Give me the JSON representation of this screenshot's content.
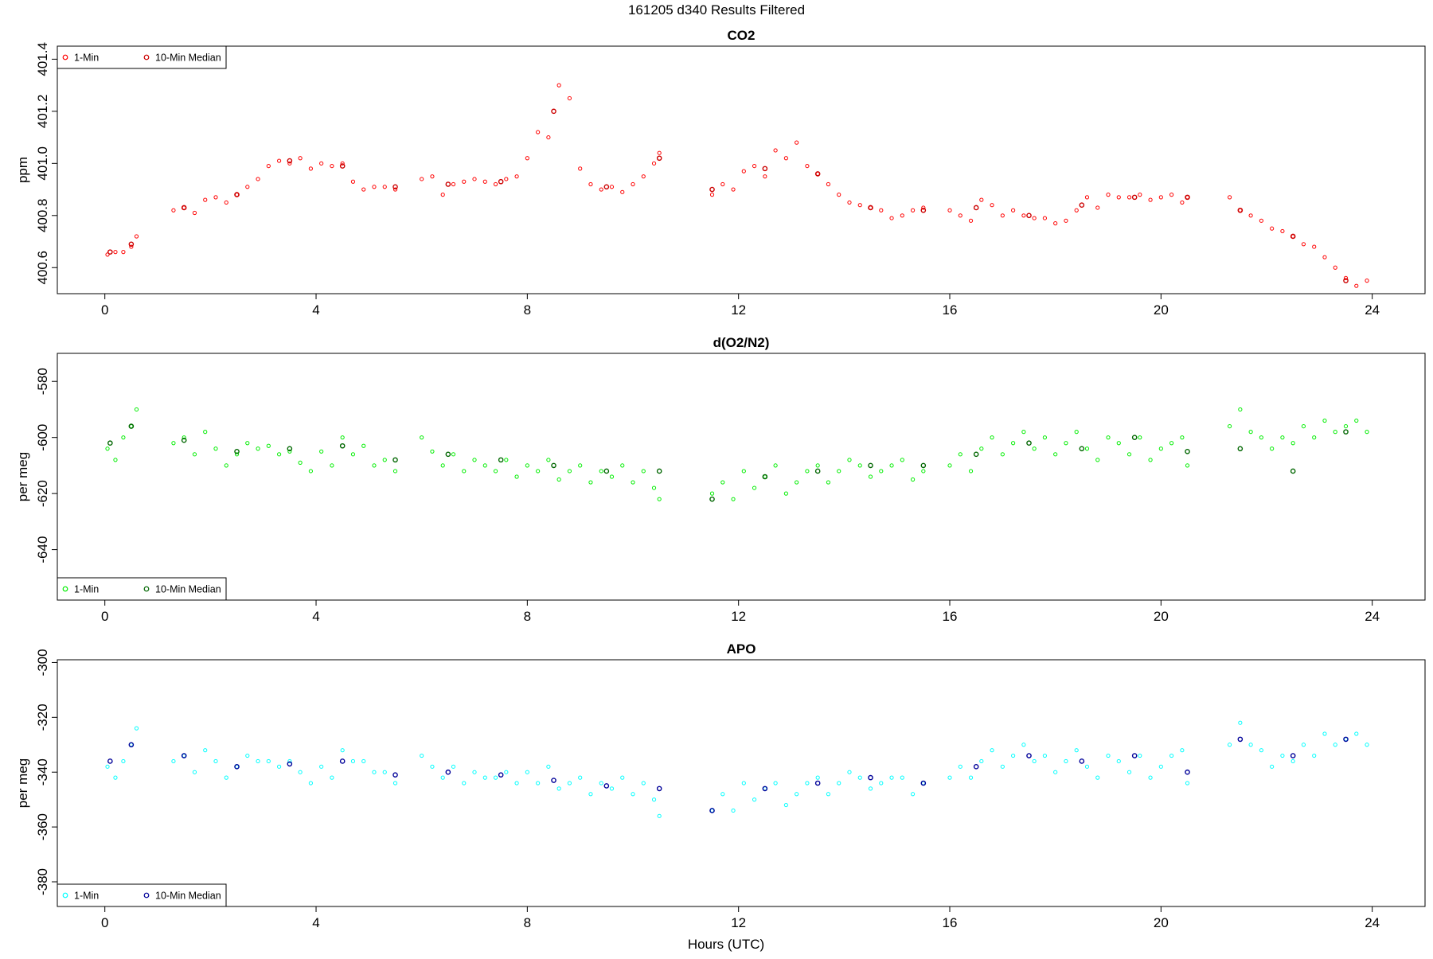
{
  "page_title": "161205   d340   Results Filtered",
  "xlabel": "Hours (UTC)",
  "chart_data": [
    {
      "type": "scatter",
      "title": "CO2",
      "ylabel": "ppm",
      "xlim": [
        -0.9,
        25.0
      ],
      "ylim": [
        400.5,
        401.45
      ],
      "xticks": [
        0,
        4,
        8,
        12,
        16,
        20,
        24
      ],
      "yticks": [
        400.6,
        400.8,
        401.0,
        401.2,
        401.4
      ],
      "ytick_labels": [
        "400.6",
        "400.8",
        "401.0",
        "401.2",
        "401.4"
      ],
      "legend": {
        "position": "top-left",
        "entries": [
          "1-Min",
          "10-Min Median"
        ]
      },
      "series": [
        {
          "name": "1-Min",
          "color": "#ff0000",
          "x": [
            0.05,
            0.2,
            0.35,
            0.5,
            0.6,
            1.3,
            1.5,
            1.7,
            1.9,
            2.1,
            2.3,
            2.5,
            2.7,
            2.9,
            3.1,
            3.3,
            3.5,
            3.7,
            3.9,
            4.1,
            4.3,
            4.5,
            4.7,
            4.9,
            5.1,
            5.3,
            5.5,
            6.0,
            6.2,
            6.4,
            6.6,
            6.8,
            7.0,
            7.2,
            7.4,
            7.6,
            7.8,
            8.0,
            8.2,
            8.4,
            8.6,
            8.8,
            9.0,
            9.2,
            9.4,
            9.6,
            9.8,
            10.0,
            10.2,
            10.4,
            10.5,
            11.5,
            11.7,
            11.9,
            12.1,
            12.3,
            12.5,
            12.7,
            12.9,
            13.1,
            13.3,
            13.5,
            13.7,
            13.9,
            14.1,
            14.3,
            14.5,
            14.7,
            14.9,
            15.1,
            15.3,
            15.5,
            16.0,
            16.2,
            16.4,
            16.6,
            16.8,
            17.0,
            17.2,
            17.4,
            17.6,
            17.8,
            18.0,
            18.2,
            18.4,
            18.6,
            18.8,
            19.0,
            19.2,
            19.4,
            19.6,
            19.8,
            20.0,
            20.2,
            20.4,
            20.5,
            21.3,
            21.5,
            21.7,
            21.9,
            22.1,
            22.3,
            22.5,
            22.7,
            22.9,
            23.1,
            23.3,
            23.5,
            23.7,
            23.9
          ],
          "values": [
            400.65,
            400.66,
            400.66,
            400.68,
            400.72,
            400.82,
            400.83,
            400.81,
            400.86,
            400.87,
            400.85,
            400.88,
            400.91,
            400.94,
            400.99,
            401.01,
            401.0,
            401.02,
            400.98,
            401.0,
            400.99,
            401.0,
            400.93,
            400.9,
            400.91,
            400.91,
            400.9,
            400.94,
            400.95,
            400.88,
            400.92,
            400.93,
            400.94,
            400.93,
            400.92,
            400.94,
            400.95,
            401.02,
            401.12,
            401.1,
            401.3,
            401.25,
            400.98,
            400.92,
            400.9,
            400.91,
            400.89,
            400.92,
            400.95,
            401.0,
            401.04,
            400.88,
            400.92,
            400.9,
            400.97,
            400.99,
            400.95,
            401.05,
            401.02,
            401.08,
            400.99,
            400.96,
            400.92,
            400.88,
            400.85,
            400.84,
            400.83,
            400.82,
            400.79,
            400.8,
            400.82,
            400.83,
            400.82,
            400.8,
            400.78,
            400.86,
            400.84,
            400.8,
            400.82,
            400.8,
            400.79,
            400.79,
            400.77,
            400.78,
            400.82,
            400.87,
            400.83,
            400.88,
            400.87,
            400.87,
            400.88,
            400.86,
            400.87,
            400.88,
            400.85,
            400.87,
            400.87,
            400.82,
            400.8,
            400.78,
            400.75,
            400.74,
            400.72,
            400.69,
            400.68,
            400.64,
            400.6,
            400.56,
            400.53,
            400.55
          ]
        },
        {
          "name": "10-Min Median",
          "color": "#cc0000",
          "x": [
            0.1,
            0.5,
            1.5,
            2.5,
            3.5,
            4.5,
            5.5,
            6.5,
            7.5,
            8.5,
            9.5,
            10.5,
            11.5,
            12.5,
            13.5,
            14.5,
            15.5,
            16.5,
            17.5,
            18.5,
            19.5,
            20.5,
            21.5,
            22.5,
            23.5
          ],
          "values": [
            400.66,
            400.69,
            400.83,
            400.88,
            401.01,
            400.99,
            400.91,
            400.92,
            400.93,
            401.2,
            400.91,
            401.02,
            400.9,
            400.98,
            400.96,
            400.83,
            400.82,
            400.83,
            400.8,
            400.84,
            400.87,
            400.87,
            400.82,
            400.72,
            400.55
          ]
        }
      ]
    },
    {
      "type": "scatter",
      "title": "d(O2/N2)",
      "ylabel": "per meg",
      "xlim": [
        -0.9,
        25.0
      ],
      "ylim": [
        -658,
        -570
      ],
      "xticks": [
        0,
        4,
        8,
        12,
        16,
        20,
        24
      ],
      "yticks": [
        -640,
        -620,
        -600,
        -580
      ],
      "ytick_labels": [
        "-640",
        "-620",
        "-600",
        "-580"
      ],
      "legend": {
        "position": "bottom-left",
        "entries": [
          "1-Min",
          "10-Min Median"
        ]
      },
      "series": [
        {
          "name": "1-Min",
          "color": "#00ee00",
          "x": [
            0.05,
            0.2,
            0.35,
            0.5,
            0.6,
            1.3,
            1.5,
            1.7,
            1.9,
            2.1,
            2.3,
            2.5,
            2.7,
            2.9,
            3.1,
            3.3,
            3.5,
            3.7,
            3.9,
            4.1,
            4.3,
            4.5,
            4.7,
            4.9,
            5.1,
            5.3,
            5.5,
            6.0,
            6.2,
            6.4,
            6.6,
            6.8,
            7.0,
            7.2,
            7.4,
            7.6,
            7.8,
            8.0,
            8.2,
            8.4,
            8.6,
            8.8,
            9.0,
            9.2,
            9.4,
            9.6,
            9.8,
            10.0,
            10.2,
            10.4,
            10.5,
            11.5,
            11.7,
            11.9,
            12.1,
            12.3,
            12.5,
            12.7,
            12.9,
            13.1,
            13.3,
            13.5,
            13.7,
            13.9,
            14.1,
            14.3,
            14.5,
            14.7,
            14.9,
            15.1,
            15.3,
            15.5,
            16.0,
            16.2,
            16.4,
            16.6,
            16.8,
            17.0,
            17.2,
            17.4,
            17.6,
            17.8,
            18.0,
            18.2,
            18.4,
            18.6,
            18.8,
            19.0,
            19.2,
            19.4,
            19.6,
            19.8,
            20.0,
            20.2,
            20.4,
            20.5,
            21.3,
            21.5,
            21.7,
            21.9,
            22.1,
            22.3,
            22.5,
            22.7,
            22.9,
            23.1,
            23.3,
            23.5,
            23.7,
            23.9
          ],
          "values": [
            -604,
            -608,
            -600,
            -596,
            -590,
            -602,
            -600,
            -606,
            -598,
            -604,
            -610,
            -606,
            -602,
            -604,
            -603,
            -606,
            -605,
            -609,
            -612,
            -605,
            -610,
            -600,
            -606,
            -603,
            -610,
            -608,
            -612,
            -600,
            -605,
            -610,
            -606,
            -612,
            -608,
            -610,
            -612,
            -608,
            -614,
            -610,
            -612,
            -608,
            -615,
            -612,
            -610,
            -616,
            -612,
            -614,
            -610,
            -616,
            -612,
            -618,
            -622,
            -620,
            -616,
            -622,
            -612,
            -618,
            -614,
            -610,
            -620,
            -616,
            -612,
            -610,
            -616,
            -612,
            -608,
            -610,
            -614,
            -612,
            -610,
            -608,
            -615,
            -612,
            -610,
            -606,
            -612,
            -604,
            -600,
            -606,
            -602,
            -598,
            -604,
            -600,
            -606,
            -602,
            -598,
            -604,
            -608,
            -600,
            -602,
            -606,
            -600,
            -608,
            -604,
            -602,
            -600,
            -610,
            -596,
            -590,
            -598,
            -600,
            -604,
            -600,
            -602,
            -596,
            -600,
            -594,
            -598,
            -596,
            -594,
            -598
          ]
        },
        {
          "name": "10-Min Median",
          "color": "#006600",
          "x": [
            0.1,
            0.5,
            1.5,
            2.5,
            3.5,
            4.5,
            5.5,
            6.5,
            7.5,
            8.5,
            9.5,
            10.5,
            11.5,
            12.5,
            13.5,
            14.5,
            15.5,
            16.5,
            17.5,
            18.5,
            19.5,
            20.5,
            21.5,
            22.5,
            23.5
          ],
          "values": [
            -602,
            -596,
            -601,
            -605,
            -604,
            -603,
            -608,
            -606,
            -608,
            -610,
            -612,
            -612,
            -622,
            -614,
            -612,
            -610,
            -610,
            -606,
            -602,
            -604,
            -600,
            -605,
            -604,
            -612,
            -598
          ]
        }
      ]
    },
    {
      "type": "scatter",
      "title": "APO",
      "ylabel": "per meg",
      "xlim": [
        -0.9,
        25.0
      ],
      "ylim": [
        -389,
        -299
      ],
      "xticks": [
        0,
        4,
        8,
        12,
        16,
        20,
        24
      ],
      "yticks": [
        -380,
        -360,
        -340,
        -320,
        -300
      ],
      "ytick_labels": [
        "-380",
        "-360",
        "-340",
        "-320",
        "-300"
      ],
      "legend": {
        "position": "bottom-left",
        "entries": [
          "1-Min",
          "10-Min Median"
        ]
      },
      "series": [
        {
          "name": "1-Min",
          "color": "#00ffff",
          "x": [
            0.05,
            0.2,
            0.35,
            0.5,
            0.6,
            1.3,
            1.5,
            1.7,
            1.9,
            2.1,
            2.3,
            2.5,
            2.7,
            2.9,
            3.1,
            3.3,
            3.5,
            3.7,
            3.9,
            4.1,
            4.3,
            4.5,
            4.7,
            4.9,
            5.1,
            5.3,
            5.5,
            6.0,
            6.2,
            6.4,
            6.6,
            6.8,
            7.0,
            7.2,
            7.4,
            7.6,
            7.8,
            8.0,
            8.2,
            8.4,
            8.6,
            8.8,
            9.0,
            9.2,
            9.4,
            9.6,
            9.8,
            10.0,
            10.2,
            10.4,
            10.5,
            11.5,
            11.7,
            11.9,
            12.1,
            12.3,
            12.5,
            12.7,
            12.9,
            13.1,
            13.3,
            13.5,
            13.7,
            13.9,
            14.1,
            14.3,
            14.5,
            14.7,
            14.9,
            15.1,
            15.3,
            15.5,
            16.0,
            16.2,
            16.4,
            16.6,
            16.8,
            17.0,
            17.2,
            17.4,
            17.6,
            17.8,
            18.0,
            18.2,
            18.4,
            18.6,
            18.8,
            19.0,
            19.2,
            19.4,
            19.6,
            19.8,
            20.0,
            20.2,
            20.4,
            20.5,
            21.3,
            21.5,
            21.7,
            21.9,
            22.1,
            22.3,
            22.5,
            22.7,
            22.9,
            23.1,
            23.3,
            23.5,
            23.7,
            23.9
          ],
          "values": [
            -338,
            -342,
            -336,
            -330,
            -324,
            -336,
            -334,
            -340,
            -332,
            -336,
            -342,
            -338,
            -334,
            -336,
            -336,
            -338,
            -336,
            -340,
            -344,
            -338,
            -342,
            -332,
            -336,
            -336,
            -340,
            -340,
            -344,
            -334,
            -338,
            -342,
            -338,
            -344,
            -340,
            -342,
            -342,
            -340,
            -344,
            -340,
            -344,
            -338,
            -346,
            -344,
            -342,
            -348,
            -344,
            -346,
            -342,
            -348,
            -344,
            -350,
            -356,
            -354,
            -348,
            -354,
            -344,
            -350,
            -346,
            -344,
            -352,
            -348,
            -344,
            -342,
            -348,
            -344,
            -340,
            -342,
            -346,
            -344,
            -342,
            -342,
            -348,
            -344,
            -342,
            -338,
            -342,
            -336,
            -332,
            -338,
            -334,
            -330,
            -336,
            -334,
            -340,
            -336,
            -332,
            -338,
            -342,
            -334,
            -336,
            -340,
            -334,
            -342,
            -338,
            -334,
            -332,
            -344,
            -330,
            -322,
            -330,
            -332,
            -338,
            -334,
            -336,
            -330,
            -334,
            -326,
            -330,
            -328,
            -326,
            -330
          ]
        },
        {
          "name": "10-Min Median",
          "color": "#000099",
          "x": [
            0.1,
            0.5,
            1.5,
            2.5,
            3.5,
            4.5,
            5.5,
            6.5,
            7.5,
            8.5,
            9.5,
            10.5,
            11.5,
            12.5,
            13.5,
            14.5,
            15.5,
            16.5,
            17.5,
            18.5,
            19.5,
            20.5,
            21.5,
            22.5,
            23.5
          ],
          "values": [
            -336,
            -330,
            -334,
            -338,
            -337,
            -336,
            -341,
            -340,
            -341,
            -343,
            -345,
            -346,
            -354,
            -346,
            -344,
            -342,
            -344,
            -338,
            -334,
            -336,
            -334,
            -340,
            -328,
            -334,
            -328
          ]
        }
      ]
    }
  ]
}
